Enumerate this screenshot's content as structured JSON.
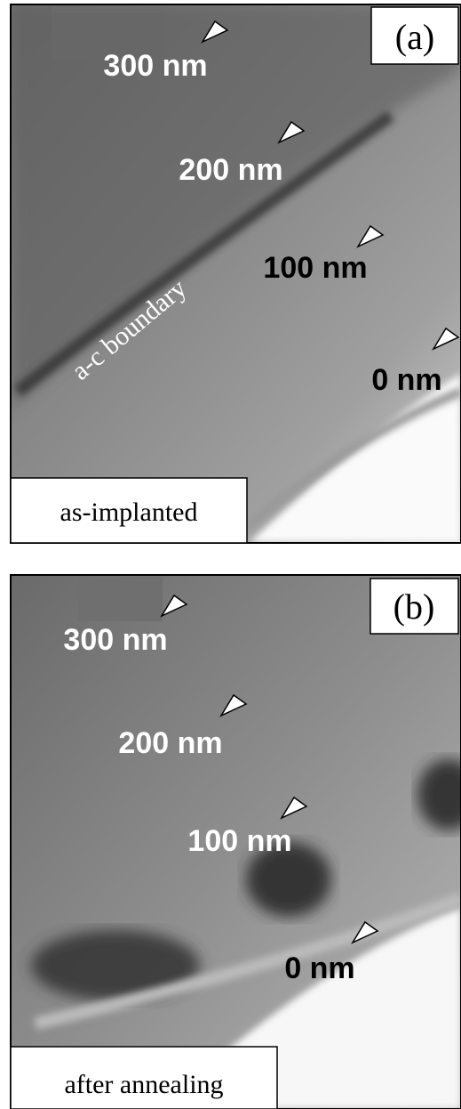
{
  "panels": [
    {
      "label": "(a)",
      "caption": "as-implanted",
      "annotation": "a-c boundary",
      "markers": [
        "300 nm",
        "200 nm",
        "100 nm",
        "0 nm"
      ]
    },
    {
      "label": "(b)",
      "caption": "after annealing",
      "markers": [
        "300 nm",
        "200 nm",
        "100 nm",
        "0 nm"
      ]
    }
  ]
}
